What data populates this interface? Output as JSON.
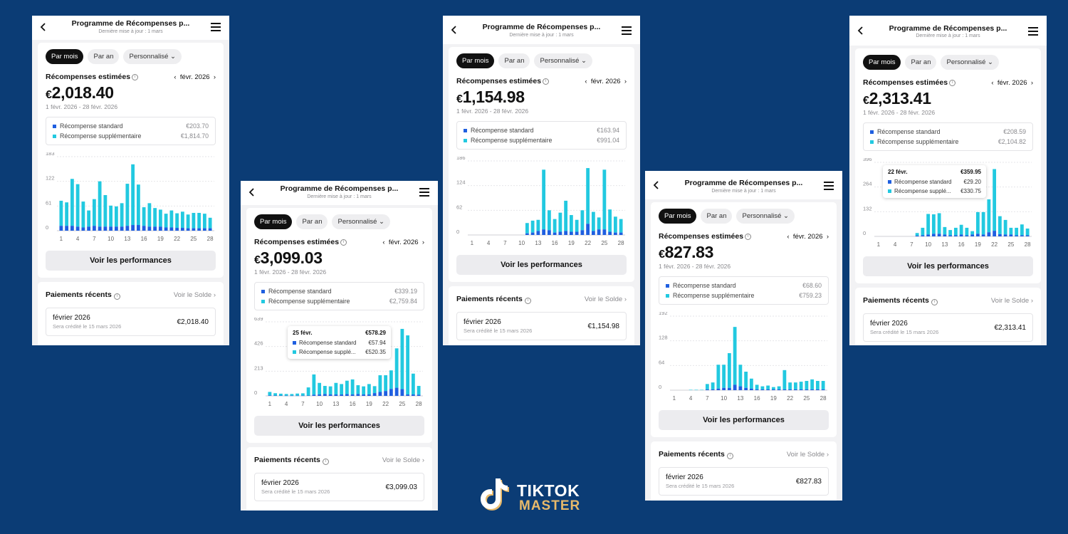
{
  "common": {
    "title": "Programme de Récompenses p...",
    "subtitle": "Dernière mise à jour : 1 mars",
    "tabs": [
      "Par mois",
      "Par an",
      "Personnalisé"
    ],
    "rewards_label": "Récompenses estimées",
    "month": "févr. 2026",
    "period": "1 févr. 2026 - 28 févr. 2026",
    "standard_label": "Récompense standard",
    "extra_label": "Récompense supplémentaire",
    "perf_button": "Voir les performances",
    "payments_label": "Paiements récents",
    "balance_link": "Voir le Solde",
    "pay_month": "février 2026",
    "pay_sub": "Sera crédité le 15 mars 2026",
    "x_ticks": [
      "1",
      "4",
      "7",
      "10",
      "13",
      "16",
      "19",
      "22",
      "25",
      "28"
    ]
  },
  "colors": {
    "standard": "#1f5fe0",
    "extra": "#22c9e0",
    "background": "#0b3c75"
  },
  "phones": [
    {
      "currency": "€",
      "amount": "2,018.40",
      "standard_value": "€203.70",
      "extra_value": "€1,814.70",
      "pay_amount": "€2,018.40",
      "chart_data": {
        "type": "bar",
        "ylim": [
          0,
          183
        ],
        "y_ticks": [
          "0",
          "61",
          "122",
          "183"
        ],
        "standard": [
          12,
          12,
          12,
          10,
          8,
          10,
          12,
          10,
          10,
          10,
          10,
          10,
          12,
          14,
          14,
          12,
          10,
          10,
          10,
          8,
          8,
          7,
          7,
          6,
          6,
          6,
          6,
          6
        ],
        "extra": [
          62,
          58,
          116,
          105,
          64,
          40,
          66,
          112,
          78,
          52,
          50,
          58,
          104,
          150,
          100,
          46,
          58,
          46,
          42,
          34,
          42,
          36,
          40,
          34,
          38,
          38,
          36,
          26
        ]
      }
    },
    {
      "currency": "€",
      "amount": "3,099.03",
      "standard_value": "€339.19",
      "extra_value": "€2,759.84",
      "pay_amount": "€3,099.03",
      "tooltip": {
        "date": "25 févr.",
        "total": "€578.29",
        "standard": "€57.94",
        "extra_label": "Récompense supplé...",
        "extra": "€520.35"
      },
      "chart_data": {
        "type": "bar",
        "ylim": [
          0,
          639
        ],
        "y_ticks": [
          "0",
          "213",
          "426",
          "639"
        ],
        "standard": [
          4,
          3,
          3,
          2,
          2,
          2,
          2,
          3,
          10,
          12,
          16,
          12,
          12,
          12,
          15,
          12,
          16,
          12,
          12,
          24,
          34,
          42,
          60,
          70,
          58,
          12,
          12,
          10
        ],
        "extra": [
          30,
          20,
          16,
          14,
          14,
          18,
          20,
          70,
          175,
          100,
          70,
          70,
          100,
          90,
          116,
          130,
          76,
          70,
          90,
          60,
          144,
          136,
          160,
          340,
          520,
          510,
          180,
          76
        ]
      }
    },
    {
      "currency": "€",
      "amount": "1,154.98",
      "standard_value": "€163.94",
      "extra_value": "€991.04",
      "pay_amount": "€1,154.98",
      "chart_data": {
        "type": "bar",
        "ylim": [
          0,
          186
        ],
        "y_ticks": [
          "0",
          "62",
          "124",
          "186"
        ],
        "standard": [
          0,
          0,
          0,
          0,
          0,
          0,
          0,
          0,
          0,
          0,
          4,
          6,
          10,
          14,
          12,
          6,
          8,
          10,
          8,
          8,
          12,
          28,
          10,
          14,
          14,
          8,
          6,
          6
        ],
        "extra": [
          0,
          0,
          0,
          0,
          0,
          0,
          0,
          0,
          0,
          0,
          26,
          30,
          28,
          150,
          50,
          34,
          48,
          76,
          42,
          30,
          50,
          140,
          48,
          30,
          150,
          56,
          40,
          34
        ]
      }
    },
    {
      "currency": "€",
      "amount": "827.83",
      "standard_value": "€68.60",
      "extra_value": "€759.23",
      "pay_amount": "€827.83",
      "chart_data": {
        "type": "bar",
        "ylim": [
          0,
          192
        ],
        "y_ticks": [
          "0",
          "64",
          "128",
          "192"
        ],
        "standard": [
          0,
          0,
          0,
          0,
          0,
          0,
          2,
          2,
          4,
          6,
          6,
          14,
          10,
          6,
          4,
          2,
          2,
          2,
          2,
          2,
          2,
          2,
          2,
          2,
          2,
          2,
          2,
          2
        ],
        "extra": [
          0,
          0,
          0,
          1,
          1,
          1,
          14,
          18,
          62,
          60,
          90,
          150,
          56,
          42,
          26,
          12,
          8,
          10,
          6,
          8,
          50,
          18,
          18,
          20,
          22,
          26,
          22,
          22
        ]
      }
    },
    {
      "currency": "€",
      "amount": "2,313.41",
      "standard_value": "€208.59",
      "extra_value": "€2,104.82",
      "pay_amount": "€2,313.41",
      "tooltip": {
        "date": "22 févr.",
        "total": "€359.95",
        "standard": "€29.20",
        "extra_label": "Récompense supplé...",
        "extra": "€330.75"
      },
      "chart_data": {
        "type": "bar",
        "ylim": [
          0,
          396
        ],
        "y_ticks": [
          "0",
          "132",
          "264",
          "396"
        ],
        "standard": [
          0,
          0,
          0,
          0,
          0,
          0,
          0,
          4,
          6,
          10,
          14,
          14,
          10,
          6,
          6,
          10,
          6,
          10,
          14,
          10,
          22,
          30,
          12,
          10,
          10,
          6,
          6,
          6
        ],
        "extra": [
          0,
          0,
          0,
          0,
          0,
          0,
          0,
          14,
          40,
          110,
          104,
          110,
          40,
          28,
          40,
          52,
          40,
          18,
          116,
          120,
          176,
          330,
          96,
          78,
          36,
          40,
          58,
          36
        ]
      }
    }
  ]
}
